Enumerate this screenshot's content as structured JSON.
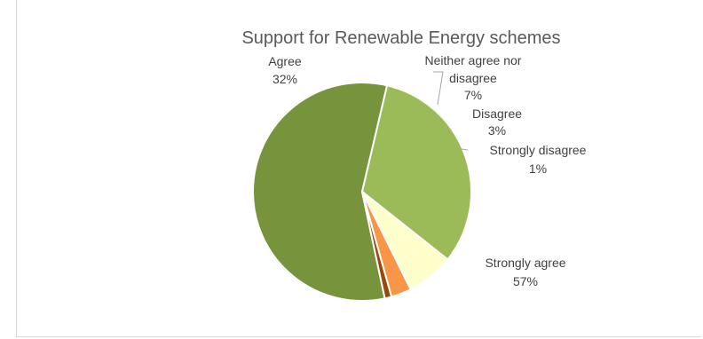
{
  "chart_data": {
    "type": "pie",
    "title": "Support for Renewable Energy schemes",
    "slices": [
      {
        "label": "Strongly agree",
        "value": 57,
        "pct_label": "57%",
        "color": "#77933C"
      },
      {
        "label": "Agree",
        "value": 32,
        "pct_label": "32%",
        "color": "#9BBB59"
      },
      {
        "label": "Neither agree nor disagree",
        "value": 7,
        "pct_label": "7%",
        "color": "#FFFFCC"
      },
      {
        "label": "Disagree",
        "value": 3,
        "pct_label": "3%",
        "color": "#F79646"
      },
      {
        "label": "Strongly disagree",
        "value": 1,
        "pct_label": "1%",
        "color": "#984807"
      }
    ],
    "label_lines": {
      "neither": [
        "Neither agree nor",
        "disagree"
      ]
    },
    "legend": "none"
  }
}
